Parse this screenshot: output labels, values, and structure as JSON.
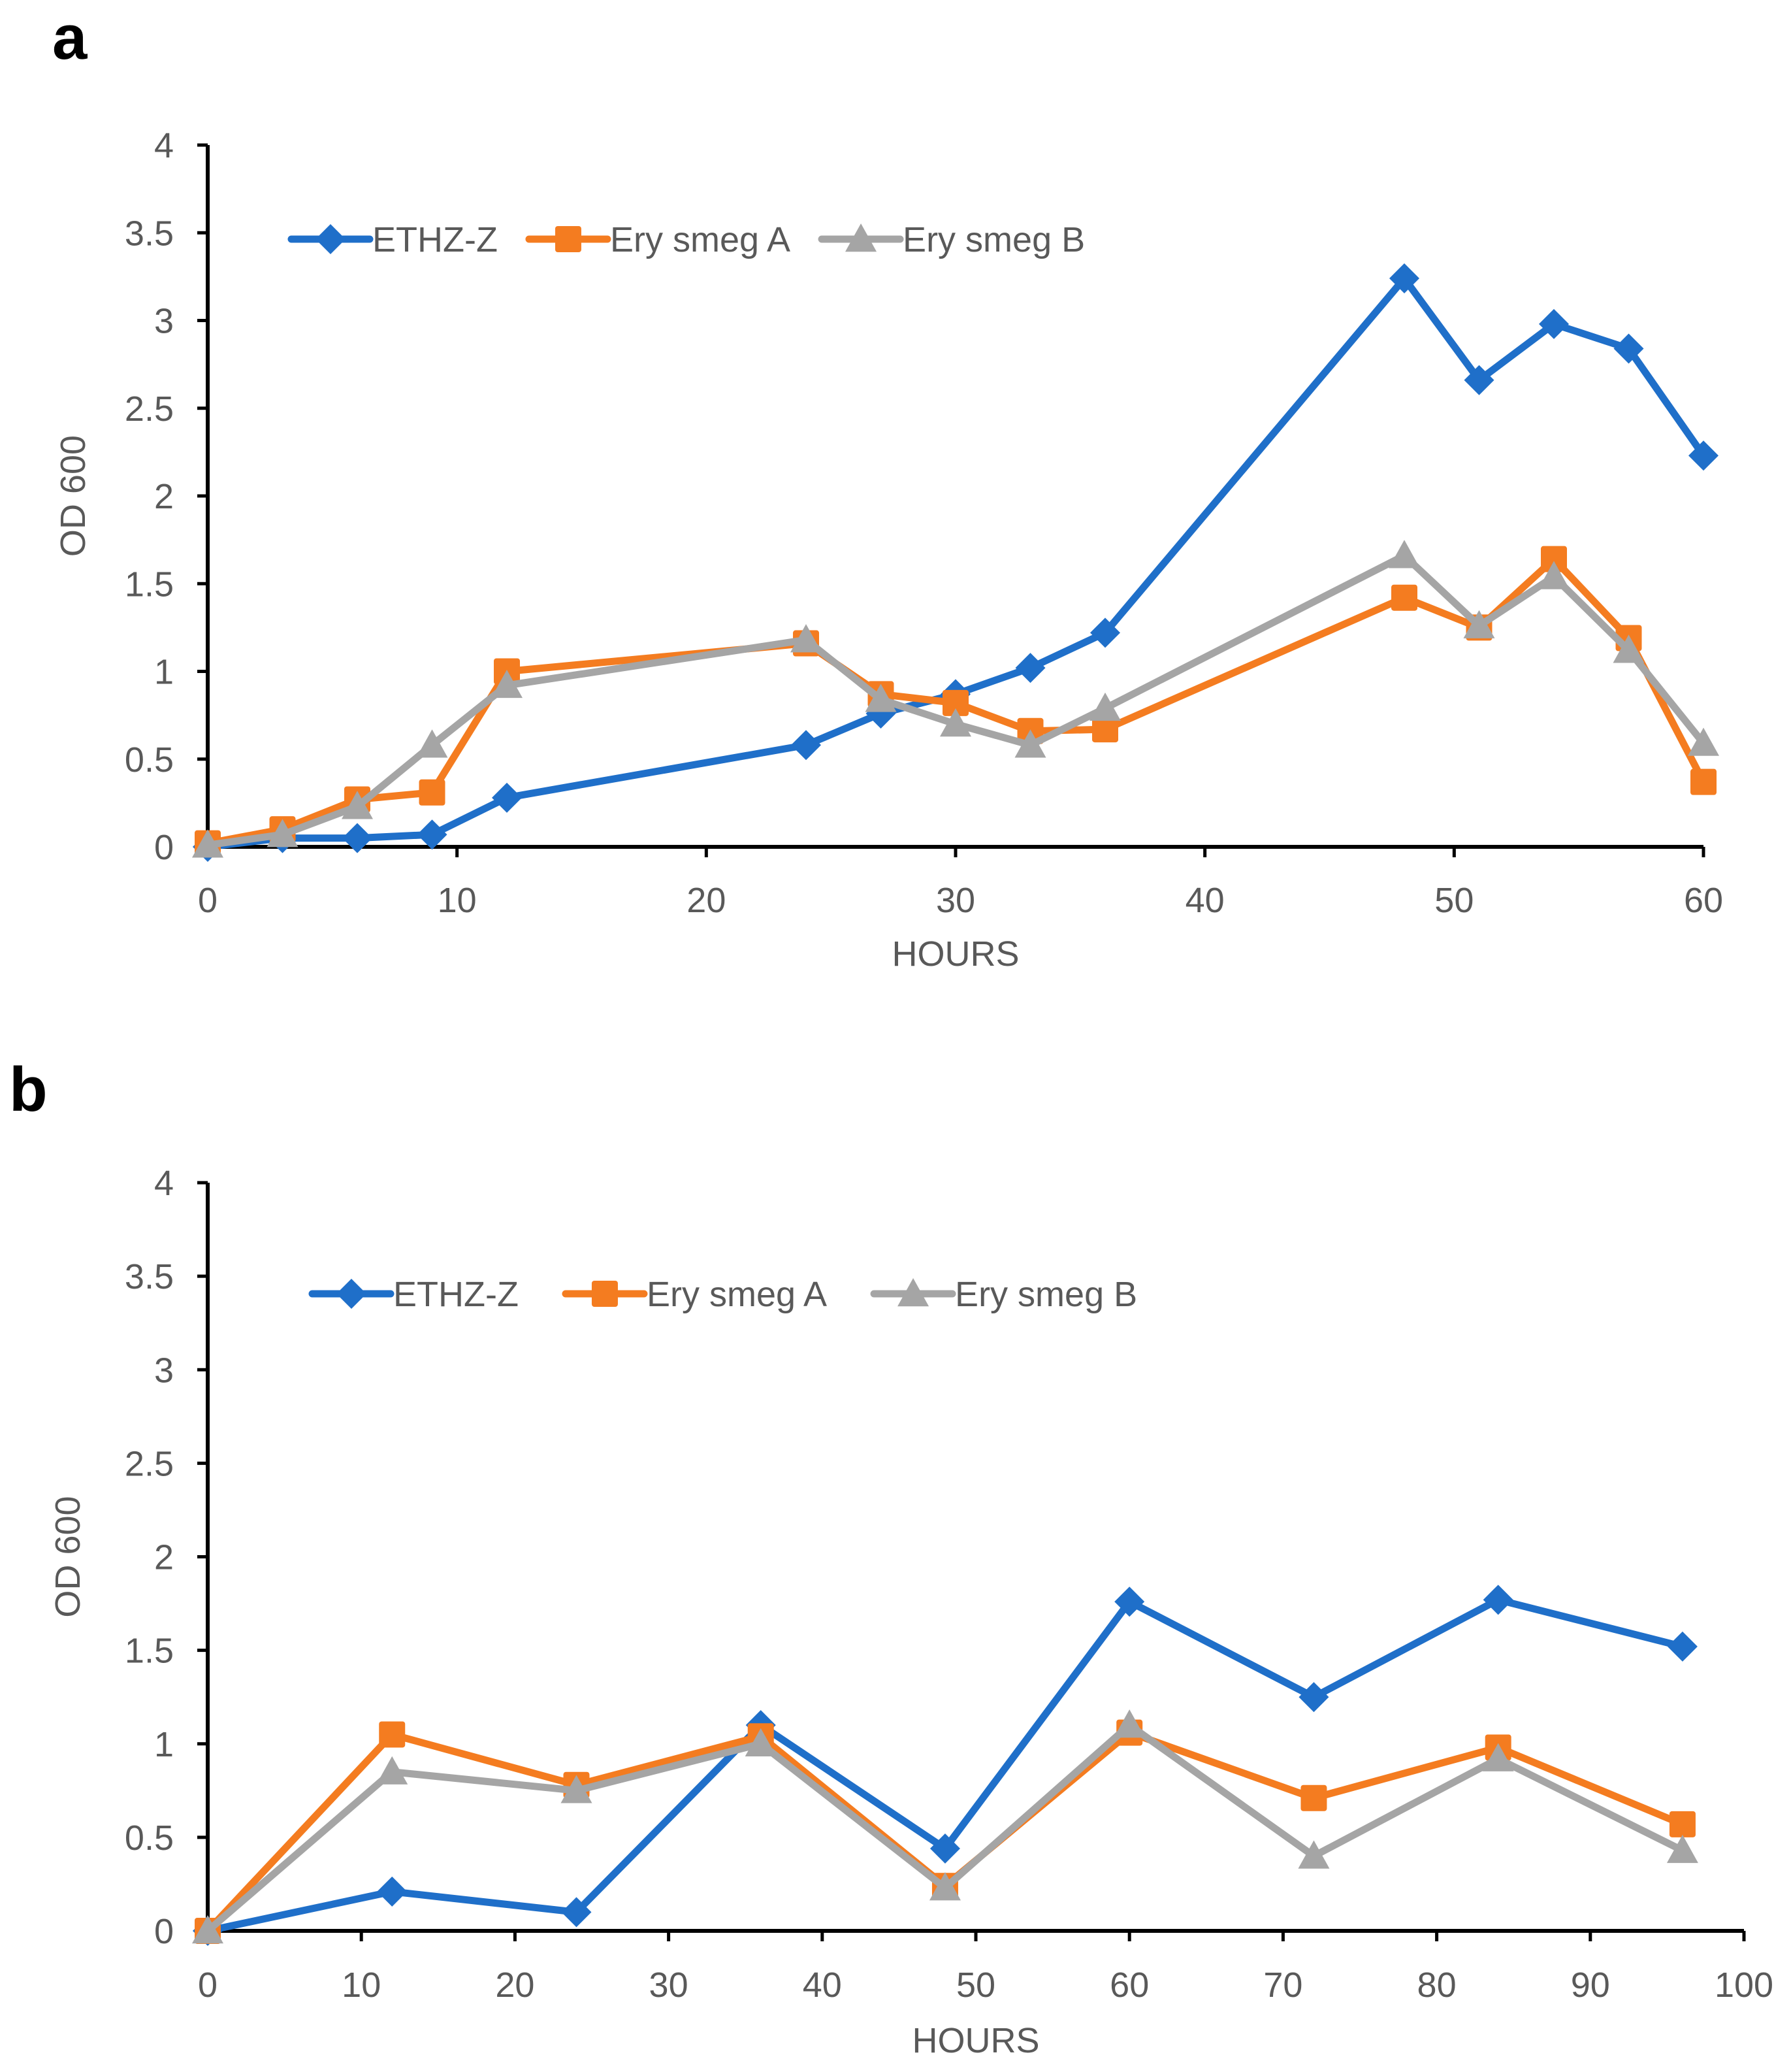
{
  "chart_data": [
    {
      "panel": "a",
      "type": "line",
      "xlabel": "HOURS",
      "ylabel": "OD 600",
      "xlim": [
        0,
        60
      ],
      "ylim": [
        0,
        4
      ],
      "xticks": [
        0,
        10,
        20,
        30,
        40,
        50,
        60
      ],
      "yticks": [
        0,
        0.5,
        1,
        1.5,
        2,
        2.5,
        3,
        3.5,
        4
      ],
      "ytick_labels": [
        "0",
        "0.5",
        "1",
        "1.5",
        "2",
        "2.5",
        "3",
        "3.5",
        "4"
      ],
      "legend_position": "top-left",
      "series": [
        {
          "name": "ETHZ-Z",
          "color": "#1f6fc9",
          "marker": "diamond",
          "x": [
            0,
            3,
            6,
            9,
            12,
            24,
            27,
            30,
            33,
            36,
            48,
            51,
            54,
            57,
            60
          ],
          "y": [
            0.0,
            0.05,
            0.05,
            0.07,
            0.28,
            0.58,
            0.76,
            0.87,
            1.02,
            1.22,
            3.24,
            2.66,
            2.98,
            2.84,
            2.23
          ]
        },
        {
          "name": "Ery smeg A",
          "color": "#f47c20",
          "marker": "square",
          "x": [
            0,
            3,
            6,
            9,
            12,
            24,
            27,
            30,
            33,
            36,
            48,
            51,
            54,
            57,
            60
          ],
          "y": [
            0.02,
            0.1,
            0.27,
            0.31,
            1.0,
            1.16,
            0.87,
            0.82,
            0.66,
            0.67,
            1.42,
            1.25,
            1.64,
            1.19,
            0.37
          ]
        },
        {
          "name": "Ery smeg B",
          "color": "#a5a5a5",
          "marker": "triangle",
          "x": [
            0,
            3,
            6,
            9,
            12,
            24,
            27,
            30,
            33,
            36,
            48,
            51,
            54,
            57,
            60
          ],
          "y": [
            0.01,
            0.07,
            0.23,
            0.58,
            0.92,
            1.18,
            0.84,
            0.7,
            0.58,
            0.79,
            1.66,
            1.26,
            1.54,
            1.12,
            0.59
          ]
        }
      ]
    },
    {
      "panel": "b",
      "type": "line",
      "xlabel": "HOURS",
      "ylabel": "OD 600",
      "xlim": [
        0,
        100
      ],
      "ylim": [
        0,
        4
      ],
      "xticks": [
        0,
        10,
        20,
        30,
        40,
        50,
        60,
        70,
        80,
        90,
        100
      ],
      "yticks": [
        0,
        0.5,
        1,
        1.5,
        2,
        2.5,
        3,
        3.5,
        4
      ],
      "ytick_labels": [
        "0",
        "0.5",
        "1",
        "1.5",
        "2",
        "2.5",
        "3",
        "3.5",
        "4"
      ],
      "legend_position": "top-left",
      "series": [
        {
          "name": "ETHZ-Z",
          "color": "#1f6fc9",
          "marker": "diamond",
          "x": [
            0,
            12,
            24,
            36,
            48,
            60,
            72,
            84,
            96
          ],
          "y": [
            0.0,
            0.21,
            0.1,
            1.1,
            0.44,
            1.76,
            1.25,
            1.77,
            1.52
          ]
        },
        {
          "name": "Ery smeg A",
          "color": "#f47c20",
          "marker": "square",
          "x": [
            0,
            12,
            24,
            36,
            48,
            60,
            72,
            84,
            96
          ],
          "y": [
            0.0,
            1.05,
            0.78,
            1.04,
            0.24,
            1.06,
            0.71,
            0.98,
            0.57
          ]
        },
        {
          "name": "Ery smeg B",
          "color": "#a5a5a5",
          "marker": "triangle",
          "x": [
            0,
            12,
            24,
            36,
            48,
            60,
            72,
            84,
            96
          ],
          "y": [
            0.0,
            0.85,
            0.75,
            1.0,
            0.23,
            1.1,
            0.4,
            0.92,
            0.43
          ]
        }
      ]
    }
  ]
}
